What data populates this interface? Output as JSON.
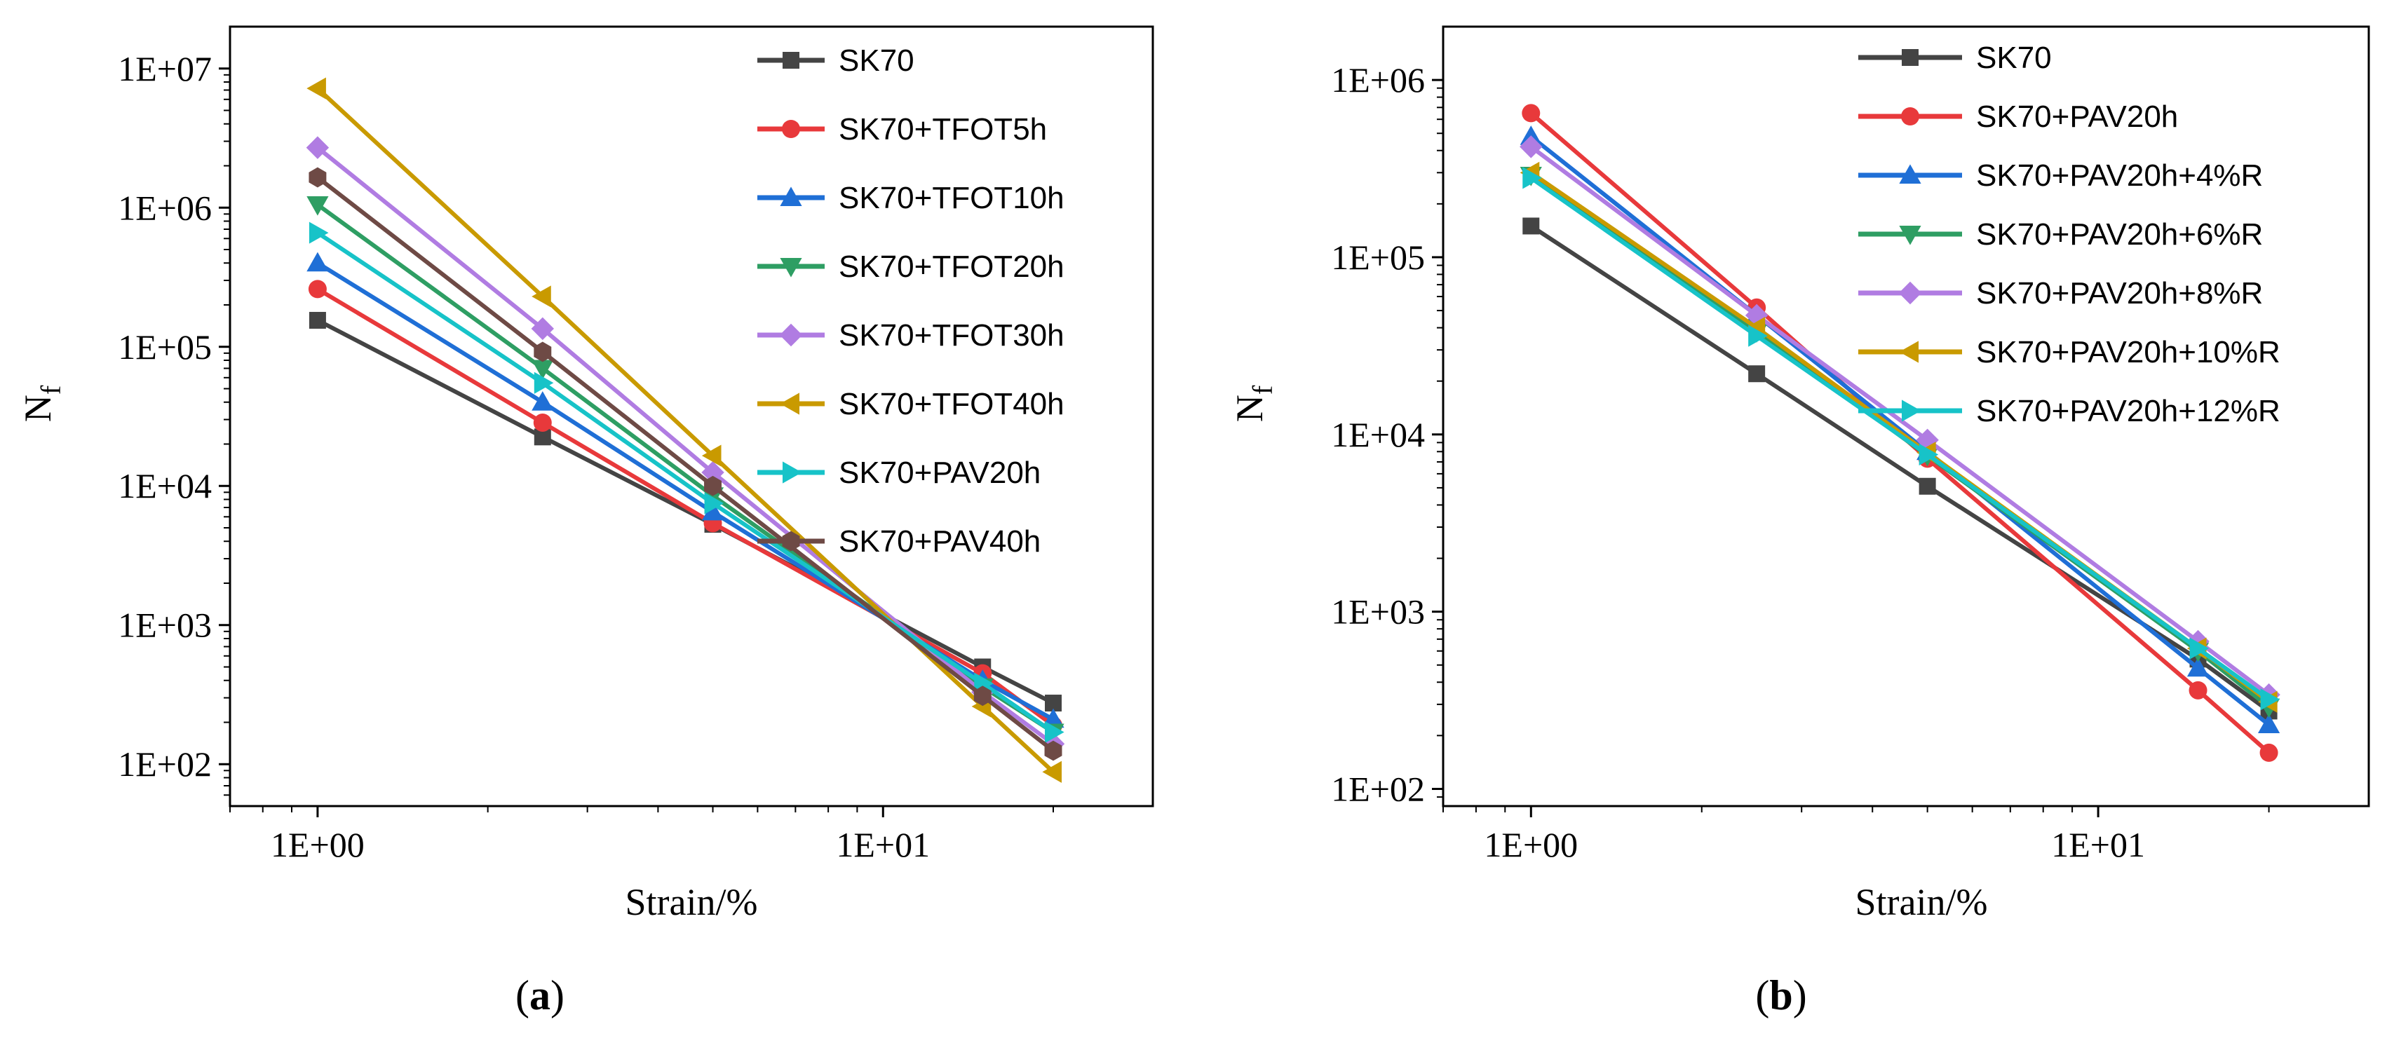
{
  "chart_data": [
    {
      "type": "line",
      "panel_label": "a",
      "xlabel": "Strain/%",
      "ylabel": "N",
      "ylabel_sub": "f",
      "xscale": "log",
      "yscale": "log",
      "xlim": [
        0.7,
        30
      ],
      "ylim": [
        50,
        20000000
      ],
      "xticks": [
        1,
        10
      ],
      "xtick_labels": [
        "1E+00",
        "1E+01"
      ],
      "yticks": [
        100,
        1000,
        10000,
        100000,
        1000000,
        10000000
      ],
      "ytick_labels": [
        "1E+02",
        "1E+03",
        "1E+04",
        "1E+05",
        "1E+06",
        "1E+07"
      ],
      "legend_position": "top-right",
      "x": [
        1,
        2.5,
        5,
        15,
        20
      ],
      "series": [
        {
          "name": "SK70",
          "color": "#444444",
          "marker": "square",
          "values": [
            155000,
            22500,
            5300,
            500,
            275
          ]
        },
        {
          "name": "SK70+TFOT5h",
          "color": "#e8393b",
          "marker": "circle",
          "values": [
            260000,
            28500,
            5400,
            450,
            190
          ]
        },
        {
          "name": "SK70+TFOT10h",
          "color": "#1f6fd6",
          "marker": "triangle-up",
          "values": [
            400000,
            40000,
            6500,
            400,
            210
          ]
        },
        {
          "name": "SK70+TFOT20h",
          "color": "#2e9e63",
          "marker": "triangle-down",
          "values": [
            1050000,
            70000,
            8500,
            360,
            170
          ]
        },
        {
          "name": "SK70+TFOT30h",
          "color": "#b07ce2",
          "marker": "diamond",
          "values": [
            2700000,
            135000,
            12500,
            330,
            140
          ]
        },
        {
          "name": "SK70+TFOT40h",
          "color": "#c99a00",
          "marker": "triangle-left",
          "values": [
            7200000,
            230000,
            16500,
            260,
            88
          ]
        },
        {
          "name": "SK70+PAV20h",
          "color": "#17c3c8",
          "marker": "triangle-right",
          "values": [
            660000,
            55000,
            7500,
            380,
            170
          ]
        },
        {
          "name": "SK70+PAV40h",
          "color": "#6e4a45",
          "marker": "hexagon",
          "values": [
            1650000,
            92000,
            10000,
            310,
            125
          ]
        }
      ]
    },
    {
      "type": "line",
      "panel_label": "b",
      "xlabel": "Strain/%",
      "ylabel": "N",
      "ylabel_sub": "f",
      "xscale": "log",
      "yscale": "log",
      "xlim": [
        0.7,
        30
      ],
      "ylim": [
        80,
        2000000
      ],
      "xticks": [
        1,
        10
      ],
      "xtick_labels": [
        "1E+00",
        "1E+01"
      ],
      "yticks": [
        100,
        1000,
        10000,
        100000,
        1000000
      ],
      "ytick_labels": [
        "1E+02",
        "1E+03",
        "1E+04",
        "1E+05",
        "1E+06"
      ],
      "legend_position": "top-right",
      "x": [
        1,
        2.5,
        5,
        15,
        20
      ],
      "series": [
        {
          "name": "SK70",
          "color": "#444444",
          "marker": "square",
          "values": [
            150000,
            22000,
            5100,
            540,
            275
          ]
        },
        {
          "name": "SK70+PAV20h",
          "color": "#e8393b",
          "marker": "circle",
          "values": [
            650000,
            52000,
            7300,
            360,
            160
          ]
        },
        {
          "name": "SK70+PAV20h+4%R",
          "color": "#1f6fd6",
          "marker": "triangle-up",
          "values": [
            480000,
            47000,
            8000,
            480,
            230
          ]
        },
        {
          "name": "SK70+PAV20h+6%R",
          "color": "#2e9e63",
          "marker": "triangle-down",
          "values": [
            290000,
            38000,
            7600,
            600,
            290
          ]
        },
        {
          "name": "SK70+PAV20h+8%R",
          "color": "#b07ce2",
          "marker": "diamond",
          "values": [
            420000,
            47000,
            9300,
            680,
            340
          ]
        },
        {
          "name": "SK70+PAV20h+10%R",
          "color": "#c99a00",
          "marker": "triangle-left",
          "values": [
            300000,
            40000,
            7900,
            620,
            310
          ]
        },
        {
          "name": "SK70+PAV20h+12%R",
          "color": "#17c3c8",
          "marker": "triangle-right",
          "values": [
            280000,
            36000,
            7700,
            620,
            320
          ]
        }
      ]
    }
  ]
}
